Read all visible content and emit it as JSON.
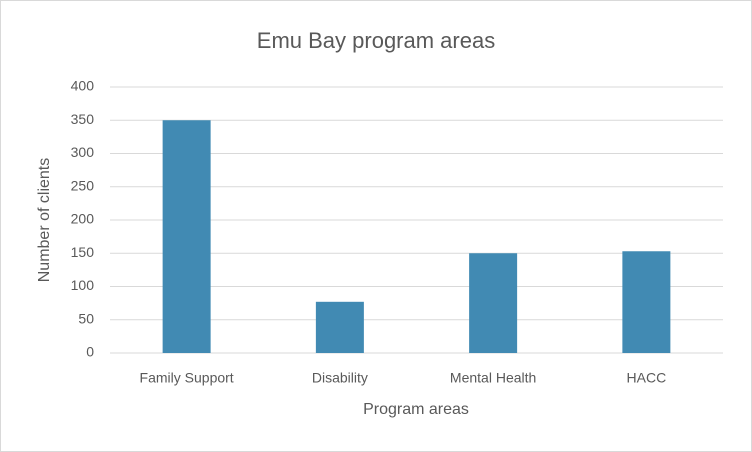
{
  "chart_data": {
    "type": "bar",
    "title": "Emu Bay program areas",
    "x_label": "Program areas",
    "y_label": "Number of clients",
    "categories": [
      "Family Support",
      "Disability",
      "Mental Health",
      "HACC"
    ],
    "values": [
      350,
      77,
      150,
      153
    ],
    "color": "#418ab3",
    "ylim": [
      0,
      400
    ],
    "yticks": [
      0,
      50,
      100,
      150,
      200,
      250,
      300,
      350,
      400
    ],
    "grid": true
  }
}
